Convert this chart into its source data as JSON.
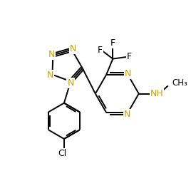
{
  "bg_color": "#ffffff",
  "bond_color": "#000000",
  "n_color": "#c8a000",
  "lw": 1.4,
  "figsize": [
    2.68,
    2.71
  ],
  "dpi": 100,
  "xlim": [
    0,
    10
  ],
  "ylim": [
    0,
    10.1
  ]
}
